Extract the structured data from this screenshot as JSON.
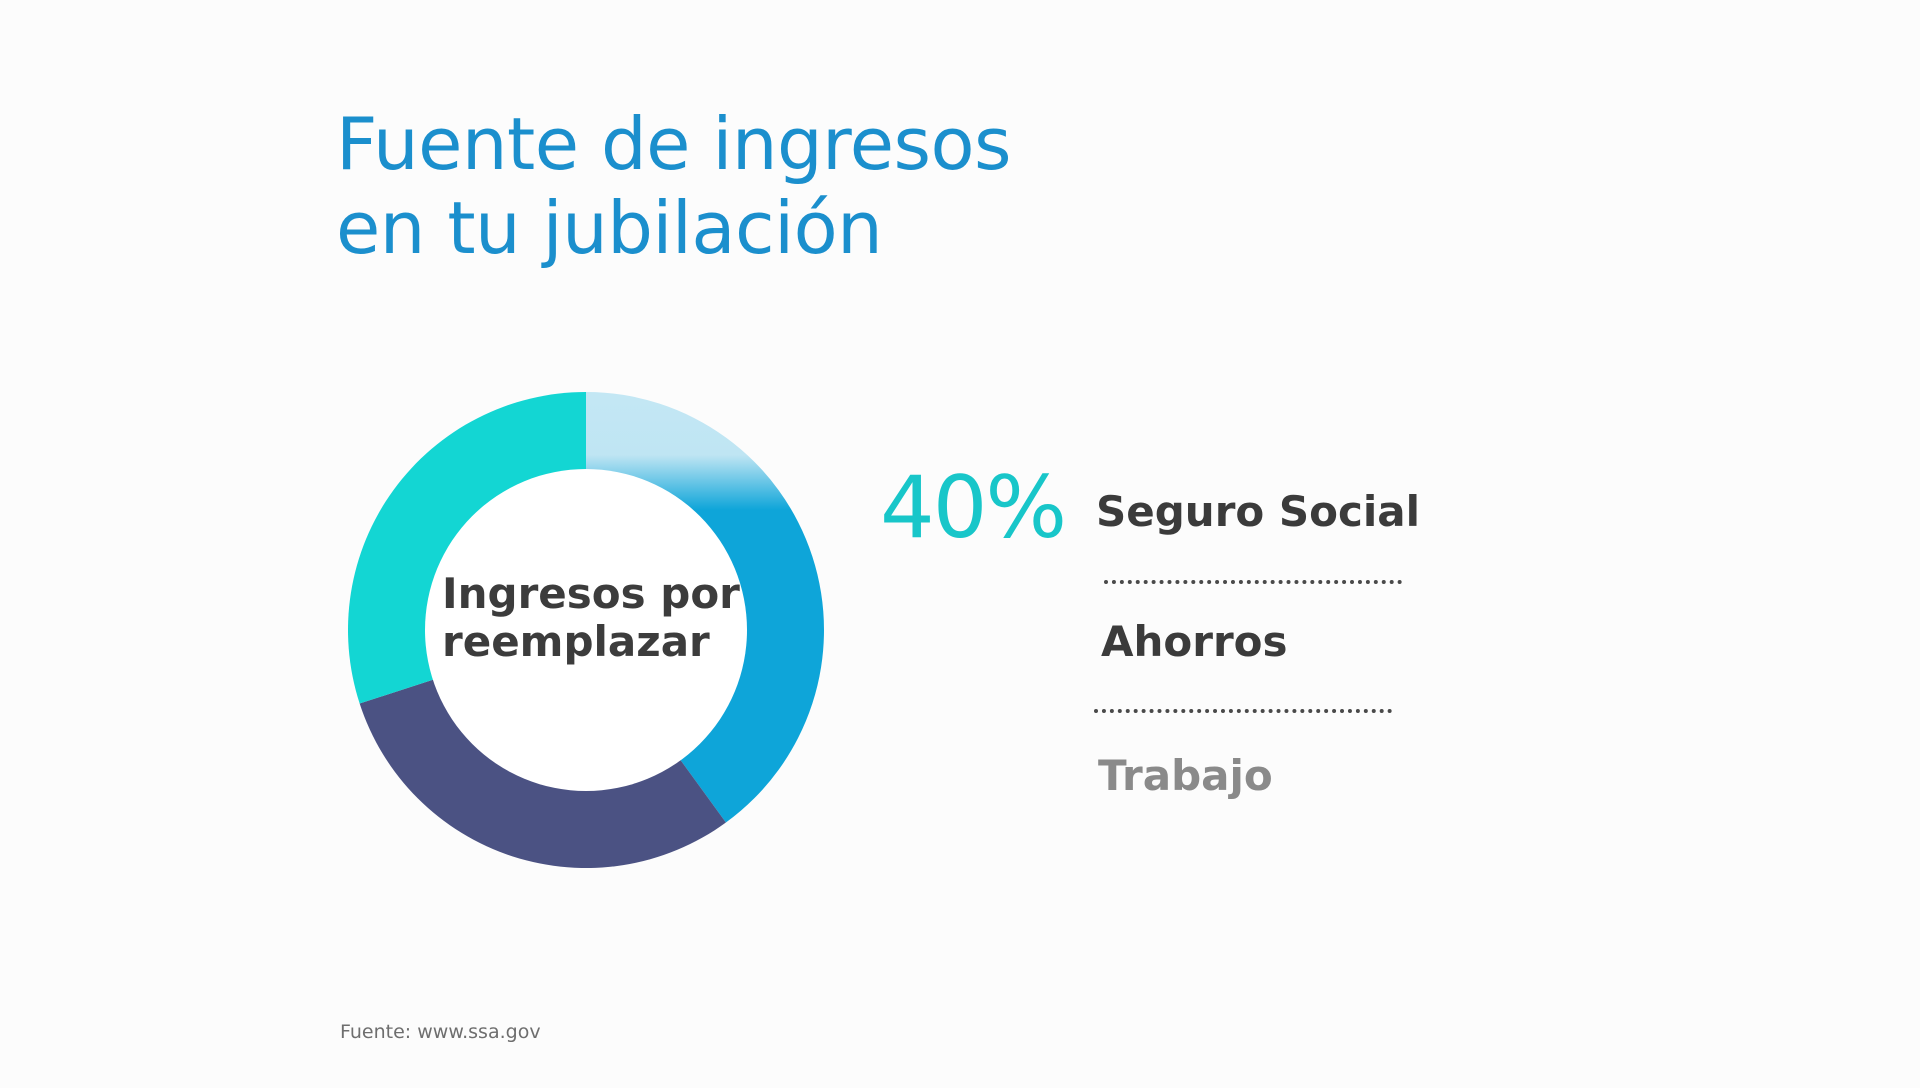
{
  "title_lines": [
    "Fuente de ingresos",
    "en tu jubilación"
  ],
  "center_label_lines": [
    "Ingresos por",
    "reemplazar"
  ],
  "highlight_value": "40%",
  "source": "Fuente: www.ssa.gov",
  "chart_data": {
    "type": "pie",
    "title": "Fuente de ingresos en tu jubilación",
    "center_label": "Ingresos por reemplazar",
    "categories": [
      "Seguro Social",
      "Ahorros",
      "Trabajo"
    ],
    "values": [
      40,
      30,
      30
    ],
    "colors": [
      "#0ea5d9",
      "#4b5283",
      "#13d6d3"
    ],
    "highlight": {
      "category": "Seguro Social",
      "value": 40,
      "label": "40%"
    },
    "legend_placement": "right"
  }
}
